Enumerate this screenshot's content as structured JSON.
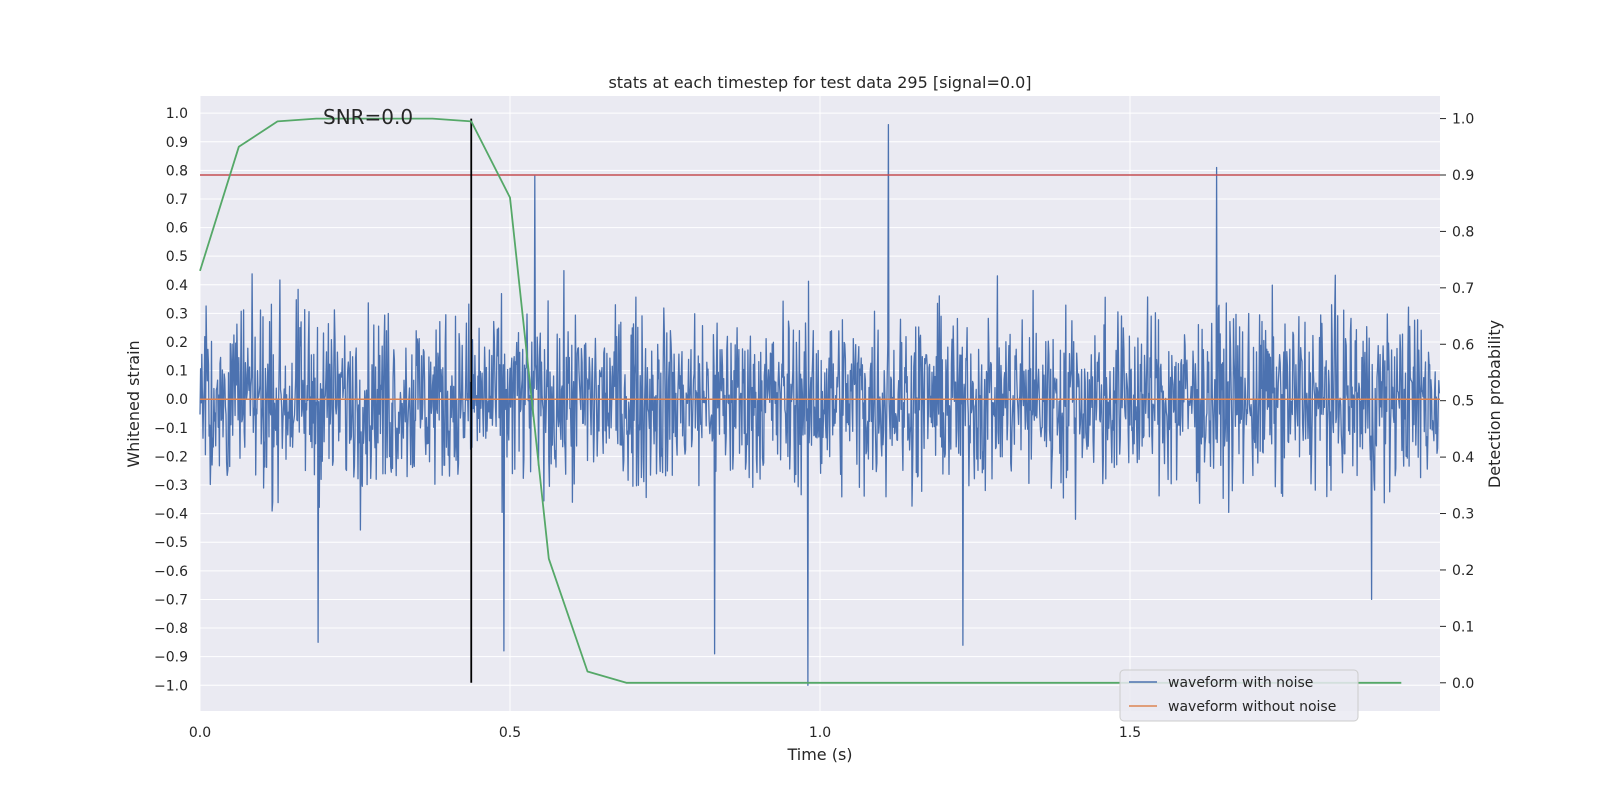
{
  "chart_data": {
    "type": "line",
    "title": "stats at each timestep for test data 295 [signal=0.0]",
    "xlabel": "Time (s)",
    "ylabel_left": "Whitened strain",
    "ylabel_right": "Detection probability",
    "annotation": "SNR=0.0",
    "xlim": [
      0.0,
      2.0
    ],
    "ylim_left": [
      -1.09,
      1.06
    ],
    "ylim_right": [
      -0.05,
      1.04
    ],
    "x_ticks": [
      0.0,
      0.5,
      1.0,
      1.5
    ],
    "x_tick_labels": [
      "0.0",
      "0.5",
      "1.0",
      "1.5"
    ],
    "y_left_ticks": [
      1.0,
      0.9,
      0.8,
      0.7,
      0.6,
      0.5,
      0.4,
      0.3,
      0.2,
      0.1,
      0.0,
      -0.1,
      -0.2,
      -0.3,
      -0.4,
      -0.5,
      -0.6,
      -0.7,
      -0.8,
      -0.9,
      -1.0
    ],
    "y_left_tick_labels": [
      "1.0",
      "0.9",
      "0.8",
      "0.7",
      "0.6",
      "0.5",
      "0.4",
      "0.3",
      "0.2",
      "0.1",
      "0.0",
      "−0.1",
      "−0.2",
      "−0.3",
      "−0.4",
      "−0.5",
      "−0.6",
      "−0.7",
      "−0.8",
      "−0.9",
      "−1.0"
    ],
    "y_right_ticks": [
      1.0,
      0.9,
      0.8,
      0.7,
      0.6,
      0.5,
      0.4,
      0.3,
      0.2,
      0.1,
      0.0
    ],
    "y_right_tick_labels": [
      "1.0",
      "0.9",
      "0.8",
      "0.7",
      "0.6",
      "0.5",
      "0.4",
      "0.3",
      "0.2",
      "0.1",
      "0.0"
    ],
    "series": [
      {
        "name": "waveform with noise",
        "axis": "left",
        "color": "#4c72b0",
        "description": "noisy whitened strain, 2048 samples, amplitude roughly within ±0.65 with spikes to 0.96 and -1.0",
        "n_samples": 2048,
        "spikes": [
          {
            "x": 0.19,
            "y": -0.85
          },
          {
            "x": 0.49,
            "y": -0.88
          },
          {
            "x": 0.54,
            "y": 0.78
          },
          {
            "x": 0.83,
            "y": -0.89
          },
          {
            "x": 0.98,
            "y": -1.0
          },
          {
            "x": 1.11,
            "y": 0.96
          },
          {
            "x": 1.23,
            "y": -0.86
          },
          {
            "x": 1.64,
            "y": 0.81
          },
          {
            "x": 1.89,
            "y": -0.7
          }
        ]
      },
      {
        "name": "waveform without noise",
        "axis": "left",
        "color": "#dd8452",
        "x": [
          0.0,
          2.0
        ],
        "y": [
          0.0,
          0.0
        ]
      },
      {
        "name": "detection probability",
        "axis": "right",
        "color": "#55a868",
        "x": [
          0.0,
          0.0625,
          0.125,
          0.1875,
          0.25,
          0.3125,
          0.375,
          0.4375,
          0.5,
          0.5625,
          0.625,
          0.6875,
          0.75,
          0.8125,
          0.875,
          0.9375,
          1.0,
          1.0625,
          1.125,
          1.1875,
          1.25,
          1.3125,
          1.375,
          1.4375,
          1.5,
          1.5625,
          1.625,
          1.6875,
          1.75,
          1.8125,
          1.875,
          1.9375
        ],
        "y": [
          0.73,
          0.95,
          0.995,
          1.0,
          1.0,
          1.0,
          1.0,
          0.995,
          0.86,
          0.22,
          0.02,
          0.0,
          0.0,
          0.0,
          0.0,
          0.0,
          0.0,
          0.0,
          0.0,
          0.0,
          0.0,
          0.0,
          0.0,
          0.0,
          0.0,
          0.0,
          0.0,
          0.0,
          0.0,
          0.0,
          0.0,
          0.0
        ]
      }
    ],
    "threshold_line": {
      "axis": "right",
      "value": 0.9,
      "color": "#c44e52"
    },
    "vertical_marker": {
      "x": 0.4375,
      "color": "#000000"
    },
    "legend_entries": [
      "waveform with noise",
      "waveform without noise"
    ],
    "legend_position": "lower-right",
    "grid": true
  },
  "colors": {
    "axes_bg": "#eaeaf2",
    "grid": "#ffffff",
    "text": "#262626"
  }
}
